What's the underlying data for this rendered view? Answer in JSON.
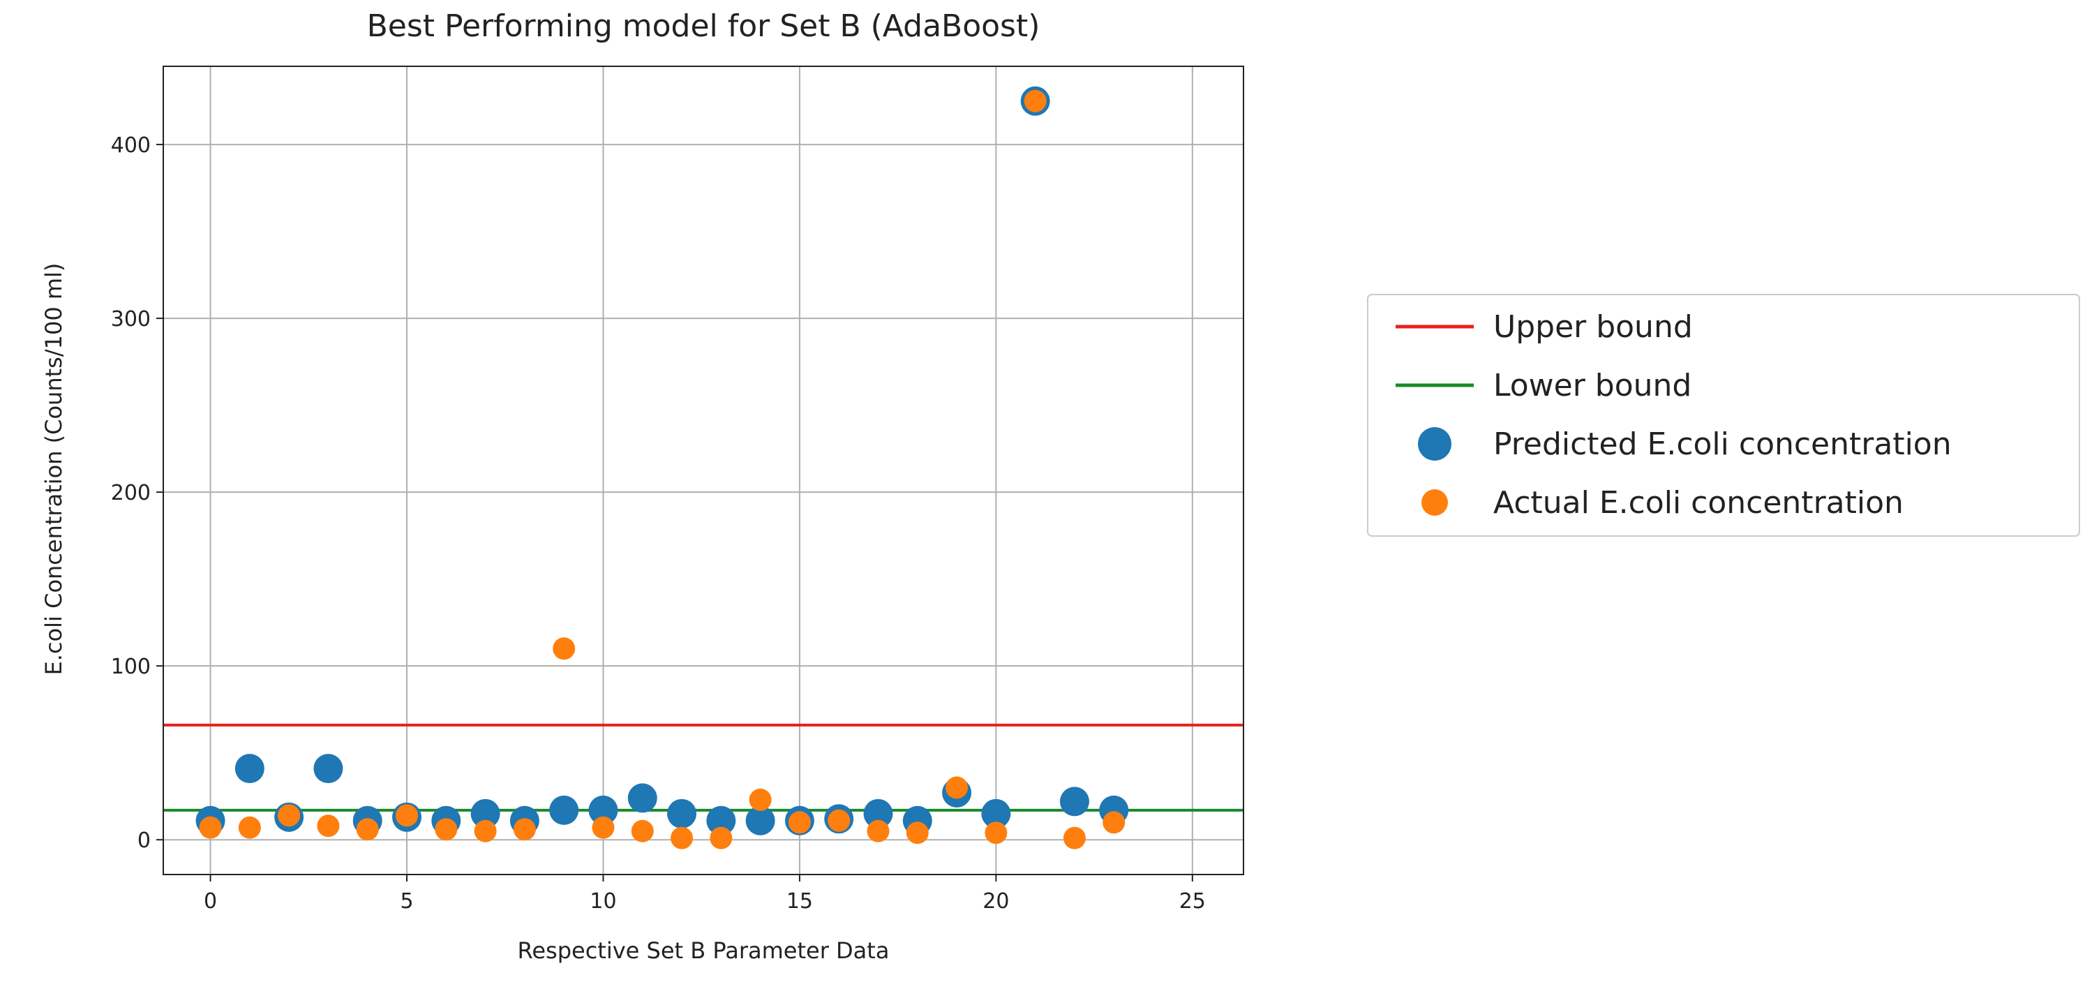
{
  "chart_data": {
    "type": "scatter",
    "title": "Best Performing model for Set B (AdaBoost)",
    "xlabel": "Respective Set B Parameter Data",
    "ylabel": "E.coli Concentration (Counts/100 ml)",
    "xlim": [
      -1.2,
      26.3
    ],
    "ylim": [
      -20,
      445
    ],
    "xticks": [
      0,
      5,
      10,
      15,
      20,
      25
    ],
    "yticks": [
      0,
      100,
      200,
      300,
      400
    ],
    "grid": true,
    "legend_position": "right, outside plot",
    "hlines": [
      {
        "name": "Upper bound",
        "y": 66,
        "color": "#e8211b"
      },
      {
        "name": "Lower bound",
        "y": 17,
        "color": "#1a8a2a"
      }
    ],
    "series": [
      {
        "name": "Predicted E.coli concentration",
        "color": "#1f77b4",
        "x": [
          0,
          1,
          2,
          3,
          4,
          5,
          6,
          7,
          8,
          9,
          10,
          11,
          12,
          13,
          14,
          15,
          16,
          17,
          18,
          19,
          20,
          21,
          22,
          23
        ],
        "y": [
          11,
          41,
          13,
          41,
          11,
          13,
          11,
          15,
          11,
          17,
          17,
          24,
          15,
          11,
          11,
          11,
          12,
          15,
          11,
          27,
          15,
          425,
          22,
          17
        ]
      },
      {
        "name": "Actual E.coli concentration",
        "color": "#ff7f0e",
        "x": [
          0,
          1,
          2,
          3,
          4,
          5,
          6,
          7,
          8,
          9,
          10,
          11,
          12,
          13,
          14,
          15,
          16,
          17,
          18,
          19,
          20,
          21,
          22,
          23
        ],
        "y": [
          7,
          7,
          14,
          8,
          6,
          14,
          6,
          5,
          6,
          110,
          7,
          5,
          1,
          1,
          23,
          10,
          11,
          5,
          4,
          30,
          4,
          425,
          1,
          10
        ]
      }
    ]
  }
}
